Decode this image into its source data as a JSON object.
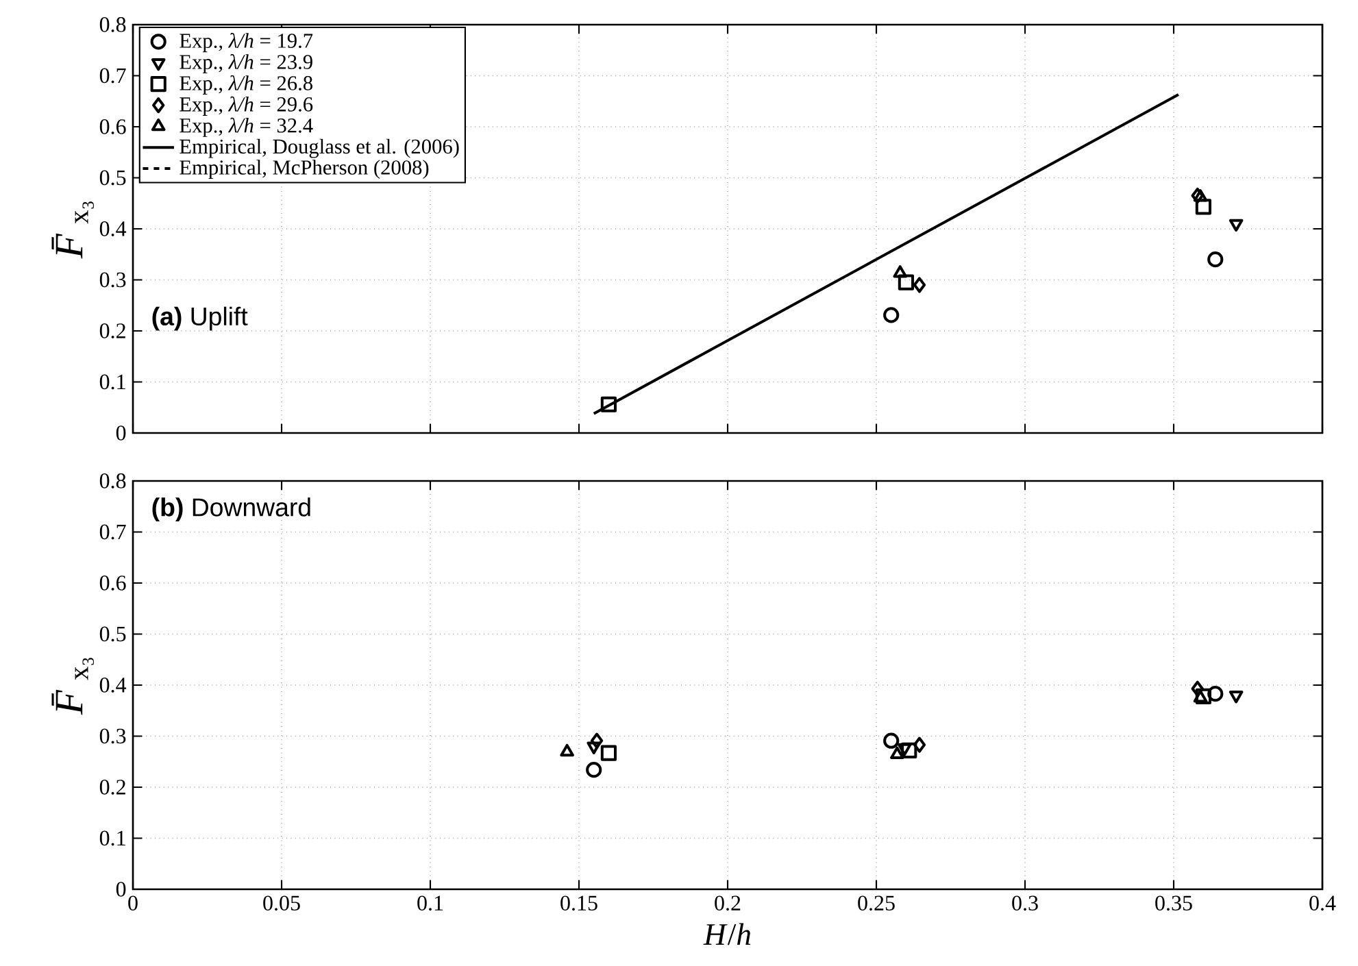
{
  "chart_data": [
    {
      "type": "scatter",
      "ylabel": "*F̄*$_{x₃}$",
      "xlim": [
        0,
        0.4
      ],
      "ylim": [
        0,
        0.8
      ],
      "xticks": [
        0,
        0.05,
        0.1,
        0.15,
        0.2,
        0.25,
        0.3,
        0.35,
        0.4
      ],
      "yticks": [
        0,
        0.1,
        0.2,
        0.3,
        0.4,
        0.5,
        0.6,
        0.7,
        0.8
      ],
      "grid": true,
      "legend": "top left",
      "tick_labels": "y",
      "annotations": [
        "**(a)** Uplift"
      ],
      "series": [
        {
          "name": "Exp., *λ/h* = 19.7",
          "color": "#000000",
          "marker": "circle",
          "x": [
            0.255,
            0.364
          ],
          "values": [
            0.231,
            0.34
          ]
        },
        {
          "name": "Exp., *λ/h* = 23.9",
          "color": "#000000",
          "marker": "triangle-down",
          "x": [
            0.371
          ],
          "values": [
            0.41
          ]
        },
        {
          "name": "Exp., *λ/h* = 26.8",
          "color": "#000000",
          "marker": "square",
          "x": [
            0.16,
            0.26,
            0.36
          ],
          "values": [
            0.056,
            0.295,
            0.443
          ]
        },
        {
          "name": "Exp., *λ/h* = 29.6",
          "color": "#000000",
          "marker": "diamond",
          "x": [
            0.2645,
            0.358
          ],
          "values": [
            0.29,
            0.465
          ]
        },
        {
          "name": "Exp., *λ/h* = 32.4",
          "color": "#000000",
          "marker": "triangle",
          "x": [
            0.258,
            0.359
          ],
          "values": [
            0.313,
            0.462
          ]
        },
        {
          "name": "Empirical, Douglass et al. (2006)",
          "type": "line",
          "color": "#000000",
          "marker": "none",
          "line_style": "solid",
          "x": [
            0.155,
            0.3516
          ],
          "values": [
            0.038,
            0.663
          ]
        },
        {
          "name": "Empirical, McPherson (2008)",
          "type": "line",
          "color": "#000000",
          "marker": "none",
          "line_style": "dashed"
        }
      ]
    },
    {
      "type": "scatter",
      "xlabel": "*H*/*h*",
      "ylabel": "*F̄*$_{x₃}$",
      "xlim": [
        0,
        0.4
      ],
      "ylim": [
        0,
        0.8
      ],
      "xticks": [
        0,
        0.05,
        0.1,
        0.15,
        0.2,
        0.25,
        0.3,
        0.35,
        0.4
      ],
      "yticks": [
        0,
        0.1,
        0.2,
        0.3,
        0.4,
        0.5,
        0.6,
        0.7,
        0.8
      ],
      "grid": true,
      "annotations": [
        "**(b)** Downward"
      ],
      "series": [
        {
          "color": "#000000",
          "marker": "circle",
          "x": [
            0.155,
            0.255,
            0.364
          ],
          "values": [
            0.234,
            0.291,
            0.383
          ]
        },
        {
          "color": "#000000",
          "marker": "triangle-down",
          "x": [
            0.155,
            0.2595,
            0.371
          ],
          "values": [
            0.28,
            0.277,
            0.38
          ]
        },
        {
          "color": "#000000",
          "marker": "square",
          "x": [
            0.16,
            0.261,
            0.36
          ],
          "values": [
            0.267,
            0.272,
            0.378
          ]
        },
        {
          "color": "#000000",
          "marker": "diamond",
          "x": [
            0.156,
            0.2645,
            0.358
          ],
          "values": [
            0.291,
            0.283,
            0.393
          ]
        },
        {
          "color": "#000000",
          "marker": "triangle",
          "x": [
            0.146,
            0.257,
            0.359
          ],
          "values": [
            0.269,
            0.264,
            0.375
          ]
        }
      ]
    }
  ]
}
